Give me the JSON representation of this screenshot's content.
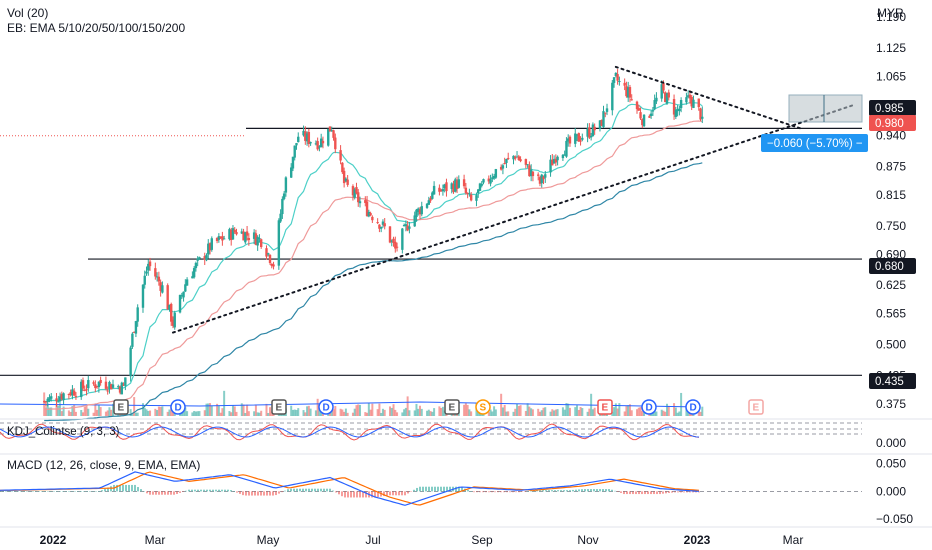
{
  "header": {
    "vol_label": "Vol (20)",
    "ema_label": "EB: EMA 5/10/20/50/100/150/200",
    "currency": "MYR",
    "kdj_label": "KDJ_Colintse (9, 3, 3)",
    "macd_label": "MACD (12, 26, close, 9, EMA, EMA)"
  },
  "colors": {
    "up": "#26a69a",
    "down": "#ef5350",
    "ema_fast": "#4dd0c8",
    "ema_mid": "#ef9a9a",
    "ema_slow": "#2e86a6",
    "macd_line": "#2962ff",
    "signal_line": "#ff6d00",
    "kdj_k": "#ef5350",
    "kdj_d": "#2962ff",
    "tag_dark": "#131722",
    "tag_red": "#ef5350",
    "tag_blue": "#2196f3"
  },
  "price_axis": {
    "ticks": [
      "1.190",
      "1.125",
      "1.065",
      "1.000",
      "0.940",
      "0.875",
      "0.815",
      "0.750",
      "0.690",
      "0.625",
      "0.565",
      "0.500",
      "0.435",
      "0.375"
    ],
    "price_range": [
      0.345,
      1.205
    ]
  },
  "price_tags": [
    {
      "label": "0.985",
      "value": 0.985,
      "color": "dark"
    },
    {
      "label": "0.980",
      "value": 0.98,
      "color": "red"
    },
    {
      "label": "0.680",
      "value": 0.68,
      "color": "dark"
    },
    {
      "label": "0.435",
      "value": 0.435,
      "color": "dark"
    }
  ],
  "projection_label": "−0.060 (−5.70%) −",
  "kdj_axis": {
    "ticks": [
      "0.000"
    ]
  },
  "macd_axis": {
    "ticks": [
      "0.050",
      "0.000",
      "−0.050"
    ],
    "range": [
      -0.055,
      0.06
    ]
  },
  "time_axis": [
    "2022",
    "Mar",
    "May",
    "Jul",
    "Sep",
    "Nov",
    "2023",
    "Mar"
  ],
  "event_badges": [
    {
      "label": "E",
      "kind": "earnings"
    },
    {
      "label": "D",
      "kind": "dividend"
    },
    {
      "label": "E",
      "kind": "earnings"
    },
    {
      "label": "D",
      "kind": "dividend"
    },
    {
      "label": "E",
      "kind": "earnings"
    },
    {
      "label": "S",
      "kind": "split"
    },
    {
      "label": "E",
      "kind": "earnings-red"
    },
    {
      "label": "D",
      "kind": "dividend"
    },
    {
      "label": "D",
      "kind": "dividend"
    },
    {
      "label": "E",
      "kind": "earnings-future"
    }
  ],
  "chart_data": {
    "type": "candlestick",
    "instrument_currency": "MYR",
    "x_range": [
      "2022-01-01",
      "2023-03-31"
    ],
    "price_keypoints": [
      [
        "2021-12-27",
        0.38
      ],
      [
        "2022-01-10",
        0.4
      ],
      [
        "2022-01-28",
        0.42
      ],
      [
        "2022-02-10",
        0.41
      ],
      [
        "2022-02-18",
        0.58
      ],
      [
        "2022-02-24",
        0.67
      ],
      [
        "2022-03-04",
        0.62
      ],
      [
        "2022-03-10",
        0.545
      ],
      [
        "2022-03-18",
        0.64
      ],
      [
        "2022-04-01",
        0.71
      ],
      [
        "2022-04-15",
        0.74
      ],
      [
        "2022-04-29",
        0.72
      ],
      [
        "2022-05-06",
        0.67
      ],
      [
        "2022-05-12",
        0.83
      ],
      [
        "2022-05-20",
        0.94
      ],
      [
        "2022-06-01",
        0.925
      ],
      [
        "2022-06-08",
        0.96
      ],
      [
        "2022-06-15",
        0.84
      ],
      [
        "2022-06-24",
        0.8
      ],
      [
        "2022-07-08",
        0.745
      ],
      [
        "2022-07-14",
        0.7
      ],
      [
        "2022-07-22",
        0.76
      ],
      [
        "2022-08-05",
        0.82
      ],
      [
        "2022-08-19",
        0.84
      ],
      [
        "2022-08-26",
        0.8
      ],
      [
        "2022-09-07",
        0.86
      ],
      [
        "2022-09-20",
        0.9
      ],
      [
        "2022-10-04",
        0.84
      ],
      [
        "2022-10-14",
        0.905
      ],
      [
        "2022-10-28",
        0.94
      ],
      [
        "2022-11-07",
        0.96
      ],
      [
        "2022-11-16",
        1.06
      ],
      [
        "2022-11-23",
        1.03
      ],
      [
        "2022-12-02",
        0.97
      ],
      [
        "2022-12-12",
        1.035
      ],
      [
        "2022-12-20",
        0.99
      ],
      [
        "2022-12-28",
        1.02
      ],
      [
        "2023-01-04",
        0.98
      ]
    ],
    "last_close": 0.98,
    "horizontal_levels": [
      0.985,
      0.68,
      0.435
    ],
    "trendlines": [
      {
        "from": [
          "2022-03-10",
          0.525
        ],
        "to": [
          "2023-03-31",
          1.005
        ]
      },
      {
        "from": [
          "2022-11-16",
          1.085
        ],
        "to": [
          "2023-03-01",
          0.955
        ]
      }
    ],
    "projection": {
      "change": -0.06,
      "percent": -5.7
    },
    "emas": [
      {
        "name": "EMA 20",
        "color": "ema_fast"
      },
      {
        "name": "EMA 50",
        "color": "ema_mid"
      },
      {
        "name": "EMA 200",
        "color": "ema_slow"
      }
    ],
    "indicators": [
      "Vol (20)",
      "KDJ_Colintse (9, 3, 3)",
      "MACD (12, 26, close, 9, EMA, EMA)"
    ],
    "macd_range": [
      -0.05,
      0.05
    ]
  }
}
